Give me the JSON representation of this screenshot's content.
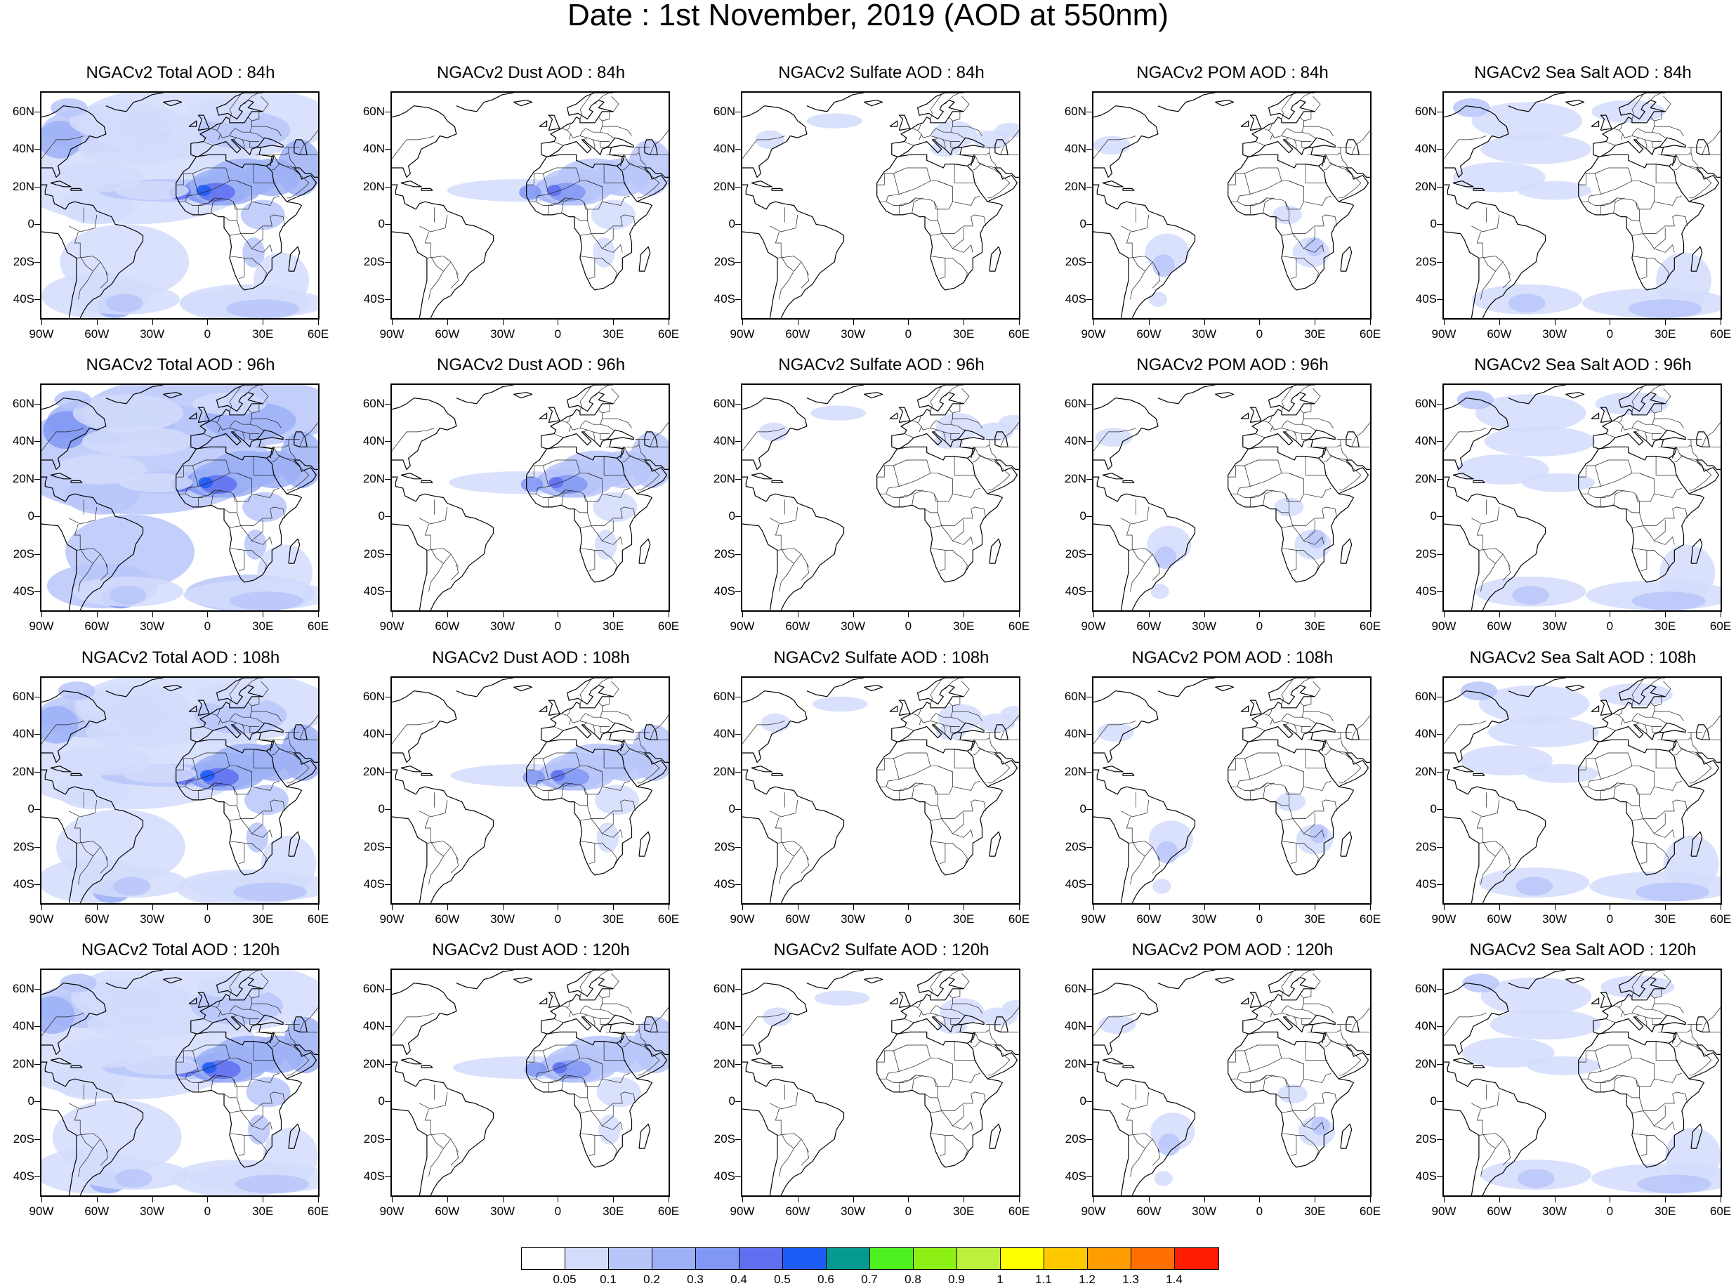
{
  "title": "Date : 1st November, 2019 (AOD at 550nm)",
  "map": {
    "projection": "cylindrical-equidistant",
    "lon_range": [
      -90,
      60
    ],
    "lat_range": [
      -50,
      70
    ],
    "xtick_values": [
      -90,
      -60,
      -30,
      0,
      30,
      60
    ],
    "xtick_labels": [
      "90W",
      "60W",
      "30W",
      "0",
      "30E",
      "60E"
    ],
    "ytick_values": [
      60,
      40,
      20,
      0,
      -20,
      -40
    ],
    "ytick_labels": [
      "60N",
      "40N",
      "20N",
      "0",
      "20S",
      "40S"
    ]
  },
  "panels": [
    [
      {
        "title": "NGACv2 Total AOD : 84h",
        "species": "total"
      },
      {
        "title": "NGACv2 Dust AOD : 84h",
        "species": "dust"
      },
      {
        "title": "NGACv2 Sulfate AOD : 84h",
        "species": "sulfate"
      },
      {
        "title": "NGACv2 POM AOD : 84h",
        "species": "pom"
      },
      {
        "title": "NGACv2 Sea Salt AOD : 84h",
        "species": "seasalt"
      }
    ],
    [
      {
        "title": "NGACv2 Total AOD : 96h",
        "species": "total"
      },
      {
        "title": "NGACv2 Dust AOD : 96h",
        "species": "dust"
      },
      {
        "title": "NGACv2 Sulfate AOD : 96h",
        "species": "sulfate"
      },
      {
        "title": "NGACv2 POM AOD : 96h",
        "species": "pom"
      },
      {
        "title": "NGACv2 Sea Salt AOD : 96h",
        "species": "seasalt"
      }
    ],
    [
      {
        "title": "NGACv2 Total AOD : 108h",
        "species": "total"
      },
      {
        "title": "NGACv2 Dust AOD : 108h",
        "species": "dust"
      },
      {
        "title": "NGACv2 Sulfate AOD : 108h",
        "species": "sulfate"
      },
      {
        "title": "NGACv2 POM AOD : 108h",
        "species": "pom"
      },
      {
        "title": "NGACv2 Sea Salt AOD : 108h",
        "species": "seasalt"
      }
    ],
    [
      {
        "title": "NGACv2 Total AOD : 120h",
        "species": "total"
      },
      {
        "title": "NGACv2 Dust AOD : 120h",
        "species": "dust"
      },
      {
        "title": "NGACv2 Sulfate AOD : 120h",
        "species": "sulfate"
      },
      {
        "title": "NGACv2 POM AOD : 120h",
        "species": "pom"
      },
      {
        "title": "NGACv2 Sea Salt  AOD : 120h",
        "species": "seasalt"
      }
    ]
  ],
  "colorbar": {
    "labels": [
      "0.05",
      "0.1",
      "0.2",
      "0.3",
      "0.4",
      "0.5",
      "0.6",
      "0.7",
      "0.8",
      "0.9",
      "1",
      "1.1",
      "1.2",
      "1.3",
      "1.4"
    ],
    "colors": [
      "#ffffff",
      "#d4dcfc",
      "#b8c5f9",
      "#9cb0f6",
      "#8097f3",
      "#5f6ff0",
      "#1c5cf5",
      "#049a90",
      "#4ef020",
      "#8cf014",
      "#bbf03e",
      "#ffff00",
      "#ffc800",
      "#ff9c00",
      "#ff6e00",
      "#ff1c00"
    ]
  }
}
